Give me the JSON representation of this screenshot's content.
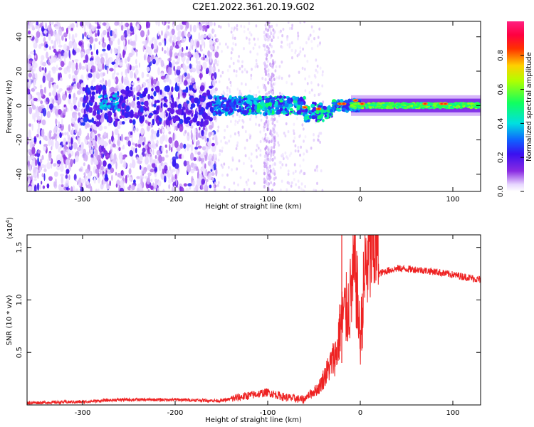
{
  "title": "C2E1.2022.361.20.19.G02",
  "chart_data": [
    {
      "type": "heatmap",
      "xlabel": "Height of straight line (km)",
      "ylabel": "Frequency (Hz)",
      "xlim": [
        -360,
        130
      ],
      "ylim": [
        -50,
        49
      ],
      "xticks": [
        -300,
        -200,
        -100,
        0,
        100
      ],
      "yticks": [
        -40,
        -20,
        0,
        20,
        40
      ],
      "colorbar": {
        "label": "Normalized spectral amplitude",
        "range": [
          0,
          1
        ],
        "ticks": [
          0.0,
          0.2,
          0.4,
          0.6,
          0.8
        ],
        "tick_labels": [
          "0.0",
          "0.2",
          "0.4",
          "0.6",
          "0.8"
        ],
        "colormap": "rainbow (white-violet-blue-cyan-green-yellow-red-magenta)"
      },
      "features": [
        {
          "name": "Scattered low-amplitude noise",
          "x_range": [
            -360,
            -155
          ],
          "y_range": [
            -50,
            49
          ],
          "amplitude": 0.05
        },
        {
          "name": "Noise column",
          "x_range": [
            -105,
            -92
          ],
          "y_range": [
            -50,
            49
          ],
          "amplitude": 0.03
        },
        {
          "name": "Main band",
          "x_range": [
            -160,
            130
          ],
          "center_hz": 0,
          "amplitude_range": [
            0.3,
            0.9
          ]
        }
      ]
    },
    {
      "type": "line",
      "xlabel": "Height of straight line (km)",
      "ylabel": "SNR (10 * v/v)",
      "y_multiplier": "(x10^4)",
      "xlim": [
        -360,
        130
      ],
      "ylim": [
        0,
        1.62
      ],
      "xticks": [
        -300,
        -200,
        -100,
        0,
        100
      ],
      "yticks": [
        0.5,
        1.0,
        1.5
      ],
      "ytick_labels": [
        "0.5",
        "1.0",
        "1.5"
      ],
      "color": "#ee2222",
      "series": [
        {
          "x": [
            -360,
            -300,
            -260,
            -200,
            -150,
            -120,
            -100,
            -80,
            -60,
            -45,
            -35,
            -30,
            -25,
            -22,
            -18,
            -12,
            -8,
            -5,
            0,
            5,
            10,
            15,
            20,
            30,
            40,
            60,
            80,
            100,
            120,
            130
          ],
          "values": [
            0.02,
            0.03,
            0.05,
            0.05,
            0.04,
            0.09,
            0.12,
            0.07,
            0.05,
            0.12,
            0.25,
            0.32,
            0.38,
            0.55,
            0.65,
            0.7,
            0.9,
            0.95,
            0.45,
            0.95,
            1.1,
            1.17,
            1.25,
            1.28,
            1.3,
            1.29,
            1.27,
            1.24,
            1.21,
            1.19
          ]
        }
      ],
      "annotations": [
        {
          "label": "spike",
          "x": -20,
          "y": 1.62
        }
      ]
    }
  ]
}
